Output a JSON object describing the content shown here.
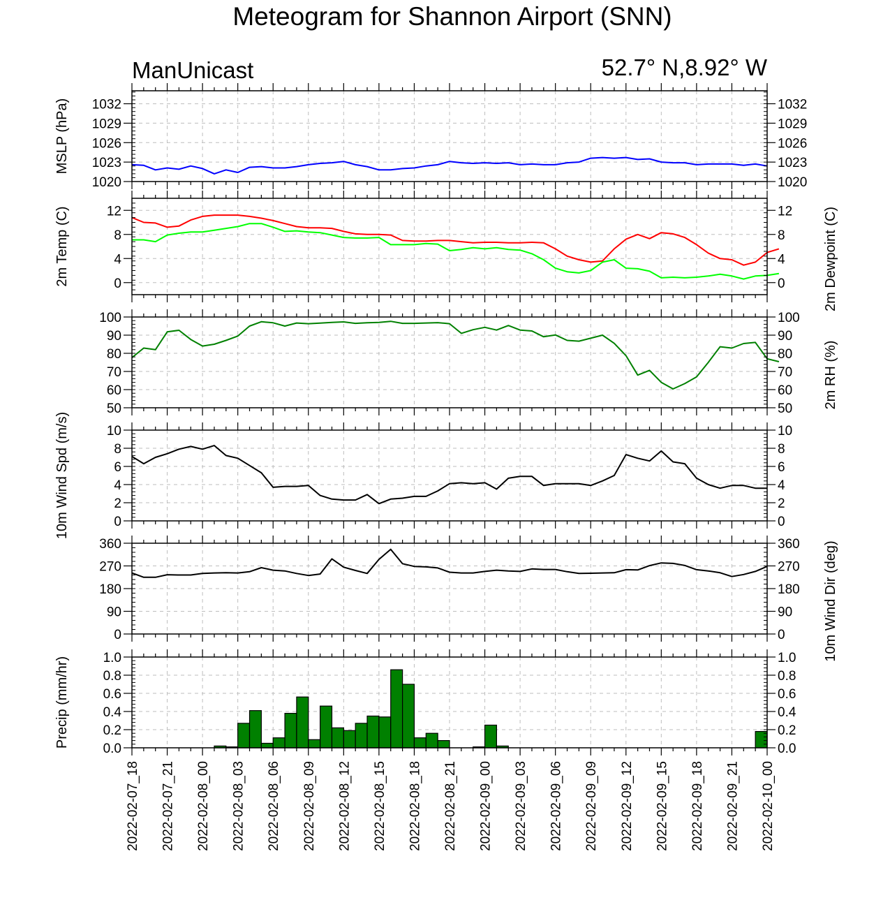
{
  "title": "Meteogram for Shannon Airport (SNN)",
  "model": "ManUnicast",
  "location": "52.7° N,8.92° W",
  "time_labels": [
    "2022-02-07_18",
    "2022-02-07_21",
    "2022-02-08_00",
    "2022-02-08_03",
    "2022-02-08_06",
    "2022-02-08_09",
    "2022-02-08_12",
    "2022-02-08_15",
    "2022-02-08_18",
    "2022-02-08_21",
    "2022-02-09_00",
    "2022-02-09_03",
    "2022-02-09_06",
    "2022-02-09_09",
    "2022-02-09_12",
    "2022-02-09_15",
    "2022-02-09_18",
    "2022-02-09_21",
    "2022-02-10_00"
  ],
  "chart_data": [
    {
      "type": "line",
      "ylabel": "MSLP (hPa)",
      "ylabel_right": "",
      "ylim": [
        1020,
        1034
      ],
      "yticks": [
        1020,
        1023,
        1026,
        1029,
        1032
      ],
      "grid": true,
      "series": [
        {
          "color": "#0000ff",
          "values": [
            1022.6,
            1022.5,
            1021.8,
            1022.1,
            1021.9,
            1022.4,
            1022.0,
            1021.2,
            1021.8,
            1021.4,
            1022.2,
            1022.3,
            1022.1,
            1022.1,
            1022.3,
            1022.6,
            1022.8,
            1022.9,
            1023.1,
            1022.6,
            1022.3,
            1021.8,
            1021.8,
            1022.0,
            1022.1,
            1022.4,
            1022.6,
            1023.1,
            1022.9,
            1022.8,
            1022.9,
            1022.8,
            1022.9,
            1022.6,
            1022.7,
            1022.6,
            1022.6,
            1022.9,
            1023.0,
            1023.6,
            1023.7,
            1023.6,
            1023.7,
            1023.4,
            1023.5,
            1023.0,
            1022.9,
            1022.9,
            1022.6,
            1022.7,
            1022.7,
            1022.7,
            1022.5,
            1022.7,
            1022.4
          ]
        }
      ]
    },
    {
      "type": "line",
      "ylabel": "2m Temp (C)",
      "ylabel_right": "2m Dewpoint (C)",
      "ylim": [
        -2,
        14
      ],
      "yticks": [
        0,
        4,
        8,
        12
      ],
      "grid": true,
      "series": [
        {
          "color": "#ff0000",
          "values": [
            10.8,
            10.0,
            9.9,
            9.2,
            9.4,
            10.4,
            11.0,
            11.2,
            11.2,
            11.2,
            11.0,
            10.7,
            10.3,
            9.8,
            9.3,
            9.1,
            9.1,
            9.0,
            8.5,
            8.1,
            8.0,
            8.0,
            7.9,
            7.0,
            6.9,
            6.9,
            7.0,
            7.0,
            6.8,
            6.6,
            6.7,
            6.7,
            6.6,
            6.6,
            6.7,
            6.6,
            5.6,
            4.4,
            3.8,
            3.4,
            3.6,
            5.6,
            7.2,
            8.0,
            7.3,
            8.3,
            8.1,
            7.5,
            6.3,
            4.9,
            4.0,
            3.8,
            2.9,
            3.4,
            5.0,
            5.6
          ]
        },
        {
          "color": "#00ff00",
          "values": [
            7.1,
            7.1,
            6.8,
            7.9,
            8.2,
            8.4,
            8.4,
            8.7,
            9.0,
            9.3,
            9.8,
            9.8,
            9.2,
            8.5,
            8.6,
            8.4,
            8.3,
            7.9,
            7.5,
            7.4,
            7.4,
            7.5,
            6.3,
            6.3,
            6.3,
            6.5,
            6.4,
            5.3,
            5.5,
            5.8,
            5.6,
            5.8,
            5.5,
            5.4,
            4.8,
            3.8,
            2.4,
            1.8,
            1.6,
            2.0,
            3.4,
            3.8,
            2.4,
            2.3,
            1.9,
            0.8,
            0.9,
            0.8,
            0.9,
            1.1,
            1.4,
            1.1,
            0.6,
            1.1,
            1.2,
            1.5
          ]
        }
      ]
    },
    {
      "type": "line",
      "ylabel": "",
      "ylabel_right": "2m RH (%)",
      "ylim": [
        50,
        100
      ],
      "yticks": [
        50,
        60,
        70,
        80,
        90,
        100
      ],
      "grid": true,
      "series": [
        {
          "color": "#008000",
          "values": [
            77.6,
            82.9,
            82.0,
            91.8,
            92.7,
            87.6,
            84.0,
            85.0,
            87.1,
            89.5,
            95.0,
            97.4,
            96.8,
            95.0,
            96.7,
            96.3,
            96.6,
            97.0,
            97.3,
            96.5,
            96.8,
            97.0,
            97.6,
            96.5,
            96.5,
            96.7,
            96.9,
            96.3,
            91.0,
            93.0,
            94.3,
            92.8,
            95.3,
            92.8,
            92.3,
            89.1,
            90.1,
            87.1,
            86.7,
            88.3,
            90.0,
            85.5,
            78.7,
            68.0,
            70.6,
            64.0,
            60.4,
            63.3,
            67.0,
            75.0,
            83.6,
            82.9,
            85.4,
            86.0,
            77.0,
            75.4
          ]
        }
      ]
    },
    {
      "type": "line",
      "ylabel": "10m Wind Spd (m/s)",
      "ylabel_right": "",
      "ylim": [
        0,
        10
      ],
      "yticks": [
        0,
        2,
        4,
        6,
        8,
        10
      ],
      "grid": true,
      "series": [
        {
          "color": "#000000",
          "values": [
            7.1,
            6.3,
            7.0,
            7.4,
            7.9,
            8.2,
            7.9,
            8.3,
            7.2,
            6.9,
            6.1,
            5.3,
            3.7,
            3.8,
            3.8,
            3.9,
            2.8,
            2.4,
            2.3,
            2.3,
            2.9,
            1.9,
            2.4,
            2.5,
            2.7,
            2.7,
            3.3,
            4.1,
            4.2,
            4.1,
            4.2,
            3.5,
            4.7,
            4.9,
            4.9,
            3.9,
            4.1,
            4.1,
            4.1,
            3.9,
            4.4,
            5.0,
            7.3,
            6.9,
            6.6,
            7.7,
            6.5,
            6.3,
            4.7,
            4.0,
            3.6,
            3.9,
            3.9,
            3.6,
            3.6
          ]
        }
      ]
    },
    {
      "type": "line",
      "ylabel": "",
      "ylabel_right": "10m Wind Dir (deg)",
      "ylim": [
        0,
        360
      ],
      "yticks": [
        0,
        90,
        180,
        270,
        360
      ],
      "grid": true,
      "series": [
        {
          "color": "#000000",
          "values": [
            242,
            225,
            225,
            235,
            234,
            234,
            240,
            242,
            243,
            242,
            247,
            263,
            253,
            250,
            240,
            232,
            238,
            298,
            265,
            252,
            240,
            296,
            336,
            279,
            268,
            266,
            262,
            245,
            242,
            242,
            248,
            253,
            250,
            248,
            258,
            256,
            256,
            247,
            240,
            241,
            242,
            243,
            255,
            254,
            271,
            282,
            280,
            272,
            255,
            250,
            243,
            228,
            236,
            248,
            268
          ]
        }
      ]
    },
    {
      "type": "bar",
      "ylabel": "Precip (mm/hr)",
      "ylabel_right": "",
      "ylim": [
        0,
        1
      ],
      "yticks": [
        0.0,
        0.2,
        0.4,
        0.6,
        0.8,
        1.0
      ],
      "grid": true,
      "series": [
        {
          "color": "#008000",
          "values": [
            0,
            0,
            0,
            0,
            0,
            0,
            0,
            0.02,
            0.01,
            0.27,
            0.41,
            0.05,
            0.11,
            0.38,
            0.56,
            0.09,
            0.46,
            0.22,
            0.19,
            0.27,
            0.35,
            0.34,
            0.86,
            0.7,
            0.11,
            0.16,
            0.08,
            0,
            0,
            0.01,
            0.25,
            0.02,
            0,
            0,
            0,
            0,
            0,
            0,
            0,
            0,
            0,
            0,
            0,
            0,
            0,
            0,
            0,
            0,
            0,
            0,
            0,
            0,
            0,
            0.18
          ]
        }
      ]
    }
  ]
}
